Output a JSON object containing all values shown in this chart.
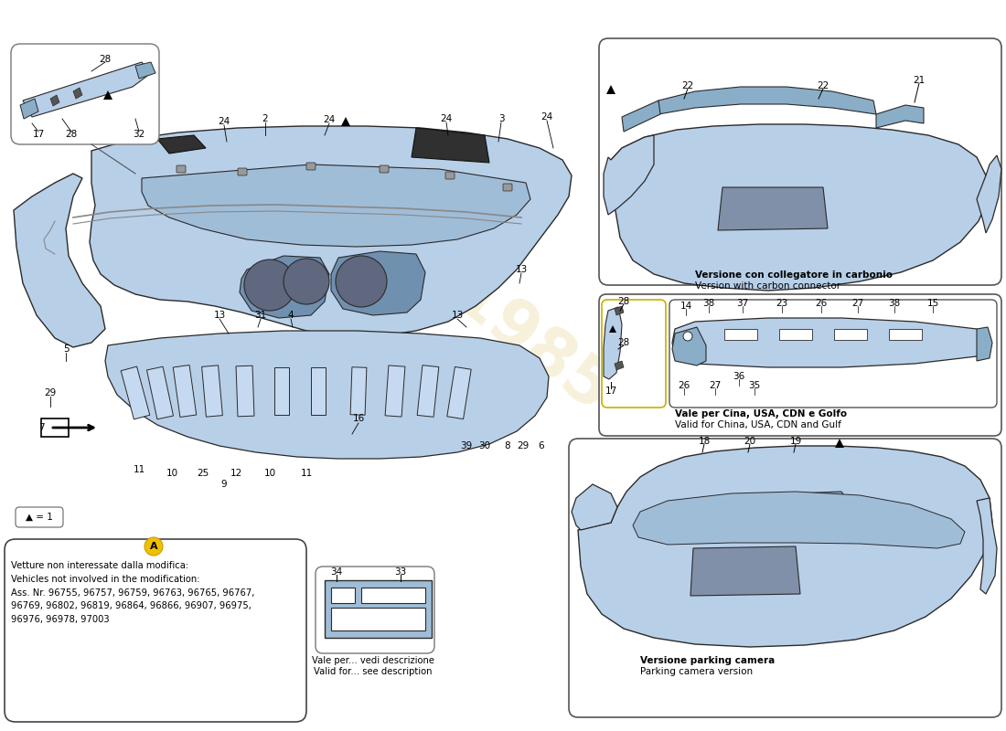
{
  "background_color": "#ffffff",
  "blue": "#b8cfe8",
  "blue_dark": "#8aaec8",
  "blue_mid": "#a0bdd8",
  "outline": "#2a2a2a",
  "carbon_dark": "#2a2a2a",
  "watermark_color": "#c8a010",
  "note_a_text": "Vetture non interessate dalla modifica:\nVehicles not involved in the modification:\nAss. Nr. 96755, 96757, 96759, 96763, 96765, 96767,\n96769, 96802, 96819, 96864, 96866, 96907, 96975,\n96976, 96978, 97003",
  "carbon_label_it": "Versione con collegatore in carbonio",
  "carbon_label_en": "Version with carbon connector",
  "parking_label_it": "Versione parking camera",
  "parking_label_en": "Parking camera version",
  "vale_label_it": "Vale per... vedi descrizione",
  "vale_label_en": "Valid for... see description",
  "china_label_it": "Vale per Cina, USA, CDN e Golfo",
  "china_label_en": "Valid for China, USA, CDN and Gulf"
}
